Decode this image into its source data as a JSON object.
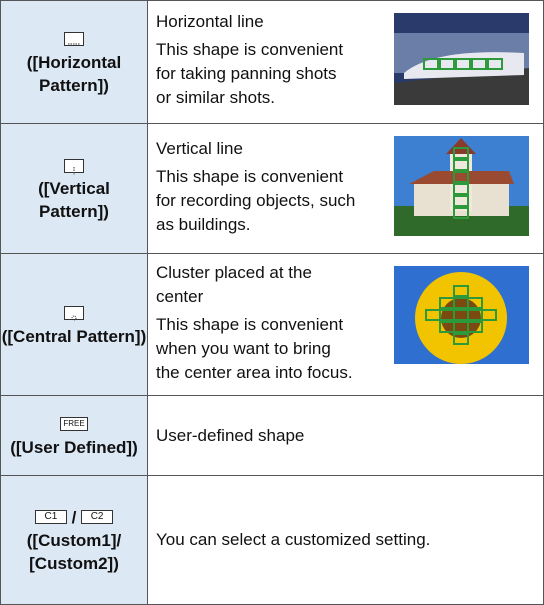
{
  "rows": [
    {
      "label": "([Horizontal Pattern])",
      "title": "Horizontal line",
      "description": "This shape is convenient for taking panning shots or similar shots."
    },
    {
      "label": "([Vertical Pattern])",
      "title": "Vertical line",
      "description": "This shape is convenient for recording objects, such as buildings."
    },
    {
      "label": "([Central Pattern])",
      "title": "Cluster placed at the center",
      "description": "This shape is convenient when you want to bring the center area into focus."
    },
    {
      "icon": "FREE",
      "label": "([User Defined])",
      "title": "User-defined shape"
    },
    {
      "icons": [
        "C1",
        "/",
        "C2"
      ],
      "label": "([Custom1]/ [Custom2])",
      "title": "You can select a customized setting."
    }
  ]
}
